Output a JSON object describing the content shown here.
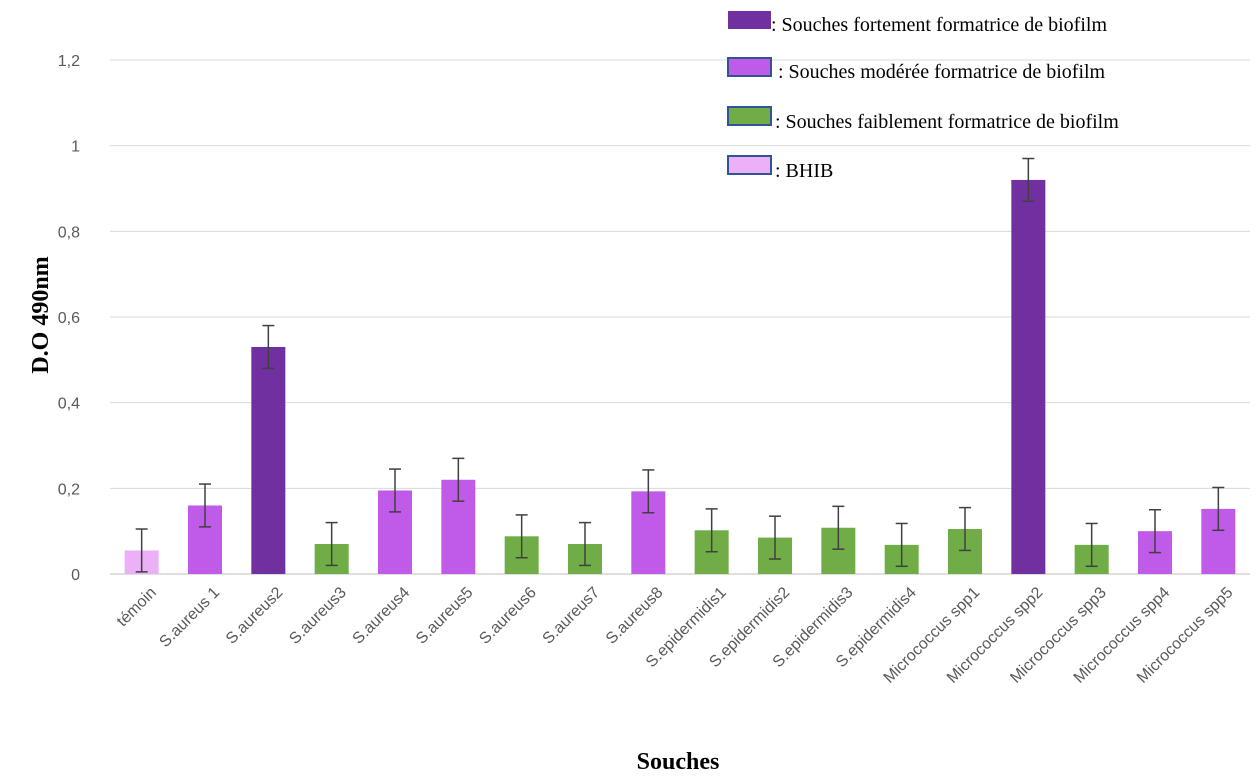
{
  "chart_data": {
    "type": "bar",
    "title": "",
    "xlabel": "Souches",
    "ylabel": "D.O 490nm",
    "ylim": [
      0,
      1.2
    ],
    "yticks": [
      "0",
      "0,2",
      "0,4",
      "0,6",
      "0,8",
      "1",
      "1,2"
    ],
    "grid": true,
    "categories": [
      "témoin",
      "S.aureus 1",
      "S.aureus2",
      "S.aureus3",
      "S.aureus4",
      "S.aureus5",
      "S.aureus6",
      "S.aureus7",
      "S.aureus8",
      "S.epidermidis1",
      "S.epidermidis2",
      "S.epidermidis3",
      "S.epidermidis4",
      "Micrococcus spp1",
      "Micrococcus spp2",
      "Micrococcus spp3",
      "Micrococcus spp4",
      "Micrococcus spp5"
    ],
    "values": [
      0.055,
      0.16,
      0.53,
      0.07,
      0.195,
      0.22,
      0.088,
      0.07,
      0.193,
      0.102,
      0.085,
      0.108,
      0.068,
      0.105,
      0.92,
      0.068,
      0.1,
      0.152
    ],
    "errors": [
      0.05,
      0.05,
      0.05,
      0.05,
      0.05,
      0.05,
      0.05,
      0.05,
      0.05,
      0.05,
      0.05,
      0.05,
      0.05,
      0.05,
      0.05,
      0.05,
      0.05,
      0.05
    ],
    "bar_groups": [
      "bhib",
      "moderate",
      "strong",
      "weak",
      "moderate",
      "moderate",
      "weak",
      "weak",
      "moderate",
      "weak",
      "weak",
      "weak",
      "weak",
      "weak",
      "strong",
      "weak",
      "moderate",
      "moderate"
    ],
    "legend_position": "top-right",
    "legend": [
      {
        "key": "strong",
        "label": ": Souches fortement formatrice de biofilm",
        "color": "#7030a0"
      },
      {
        "key": "moderate",
        "label": ": Souches modérée formatrice de biofilm",
        "color": "#c05ae8"
      },
      {
        "key": "weak",
        "label": ": Souches faiblement formatrice de biofilm",
        "color": "#70ad47"
      },
      {
        "key": "bhib",
        "label": ": BHIB",
        "color": "#ebb0f5"
      }
    ]
  }
}
